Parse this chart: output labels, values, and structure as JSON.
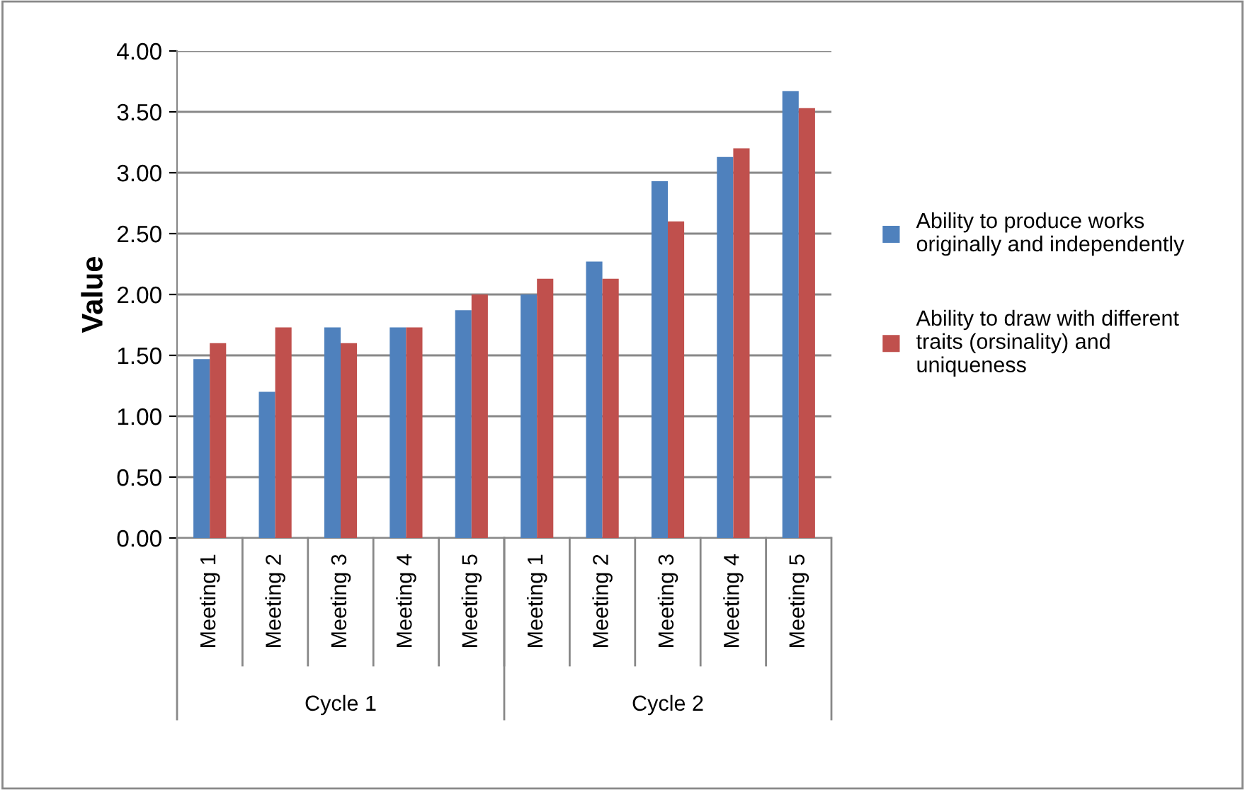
{
  "chart_data": {
    "type": "bar",
    "ylabel": "Value",
    "categories": [
      "Meeting 1",
      "Meeting 2",
      "Meeting 3",
      "Meeting 4",
      "Meeting 5",
      "Meeting 1",
      "Meeting 2",
      "Meeting 3",
      "Meeting 4",
      "Meeting 5"
    ],
    "series": [
      {
        "name": "Ability to produce works originally and independently",
        "color": "#4f81bd",
        "values": [
          1.47,
          1.2,
          1.73,
          1.73,
          1.87,
          2.0,
          2.27,
          2.93,
          3.13,
          3.67
        ]
      },
      {
        "name": "Ability to draw with different traits (orsinality) and uniqueness",
        "color": "#c0504d",
        "values": [
          1.6,
          1.73,
          1.6,
          1.73,
          2.0,
          2.13,
          2.13,
          2.6,
          3.2,
          3.53
        ]
      }
    ],
    "annotations": [
      "Cycle 1",
      "Cycle 2"
    ],
    "ylim": [
      0,
      4
    ],
    "yticks": [
      {
        "value": 0,
        "label": "0.00"
      },
      {
        "value": 0.5,
        "label": "0.50"
      },
      {
        "value": 1,
        "label": "1.00"
      },
      {
        "value": 1.5,
        "label": "1.50"
      },
      {
        "value": 2,
        "label": "2.00"
      },
      {
        "value": 2.5,
        "label": "2.50"
      },
      {
        "value": 3,
        "label": "3.00"
      },
      {
        "value": 3.5,
        "label": "3.50"
      },
      {
        "value": 4,
        "label": "4.00"
      }
    ],
    "grid": "y",
    "legend": "right"
  }
}
